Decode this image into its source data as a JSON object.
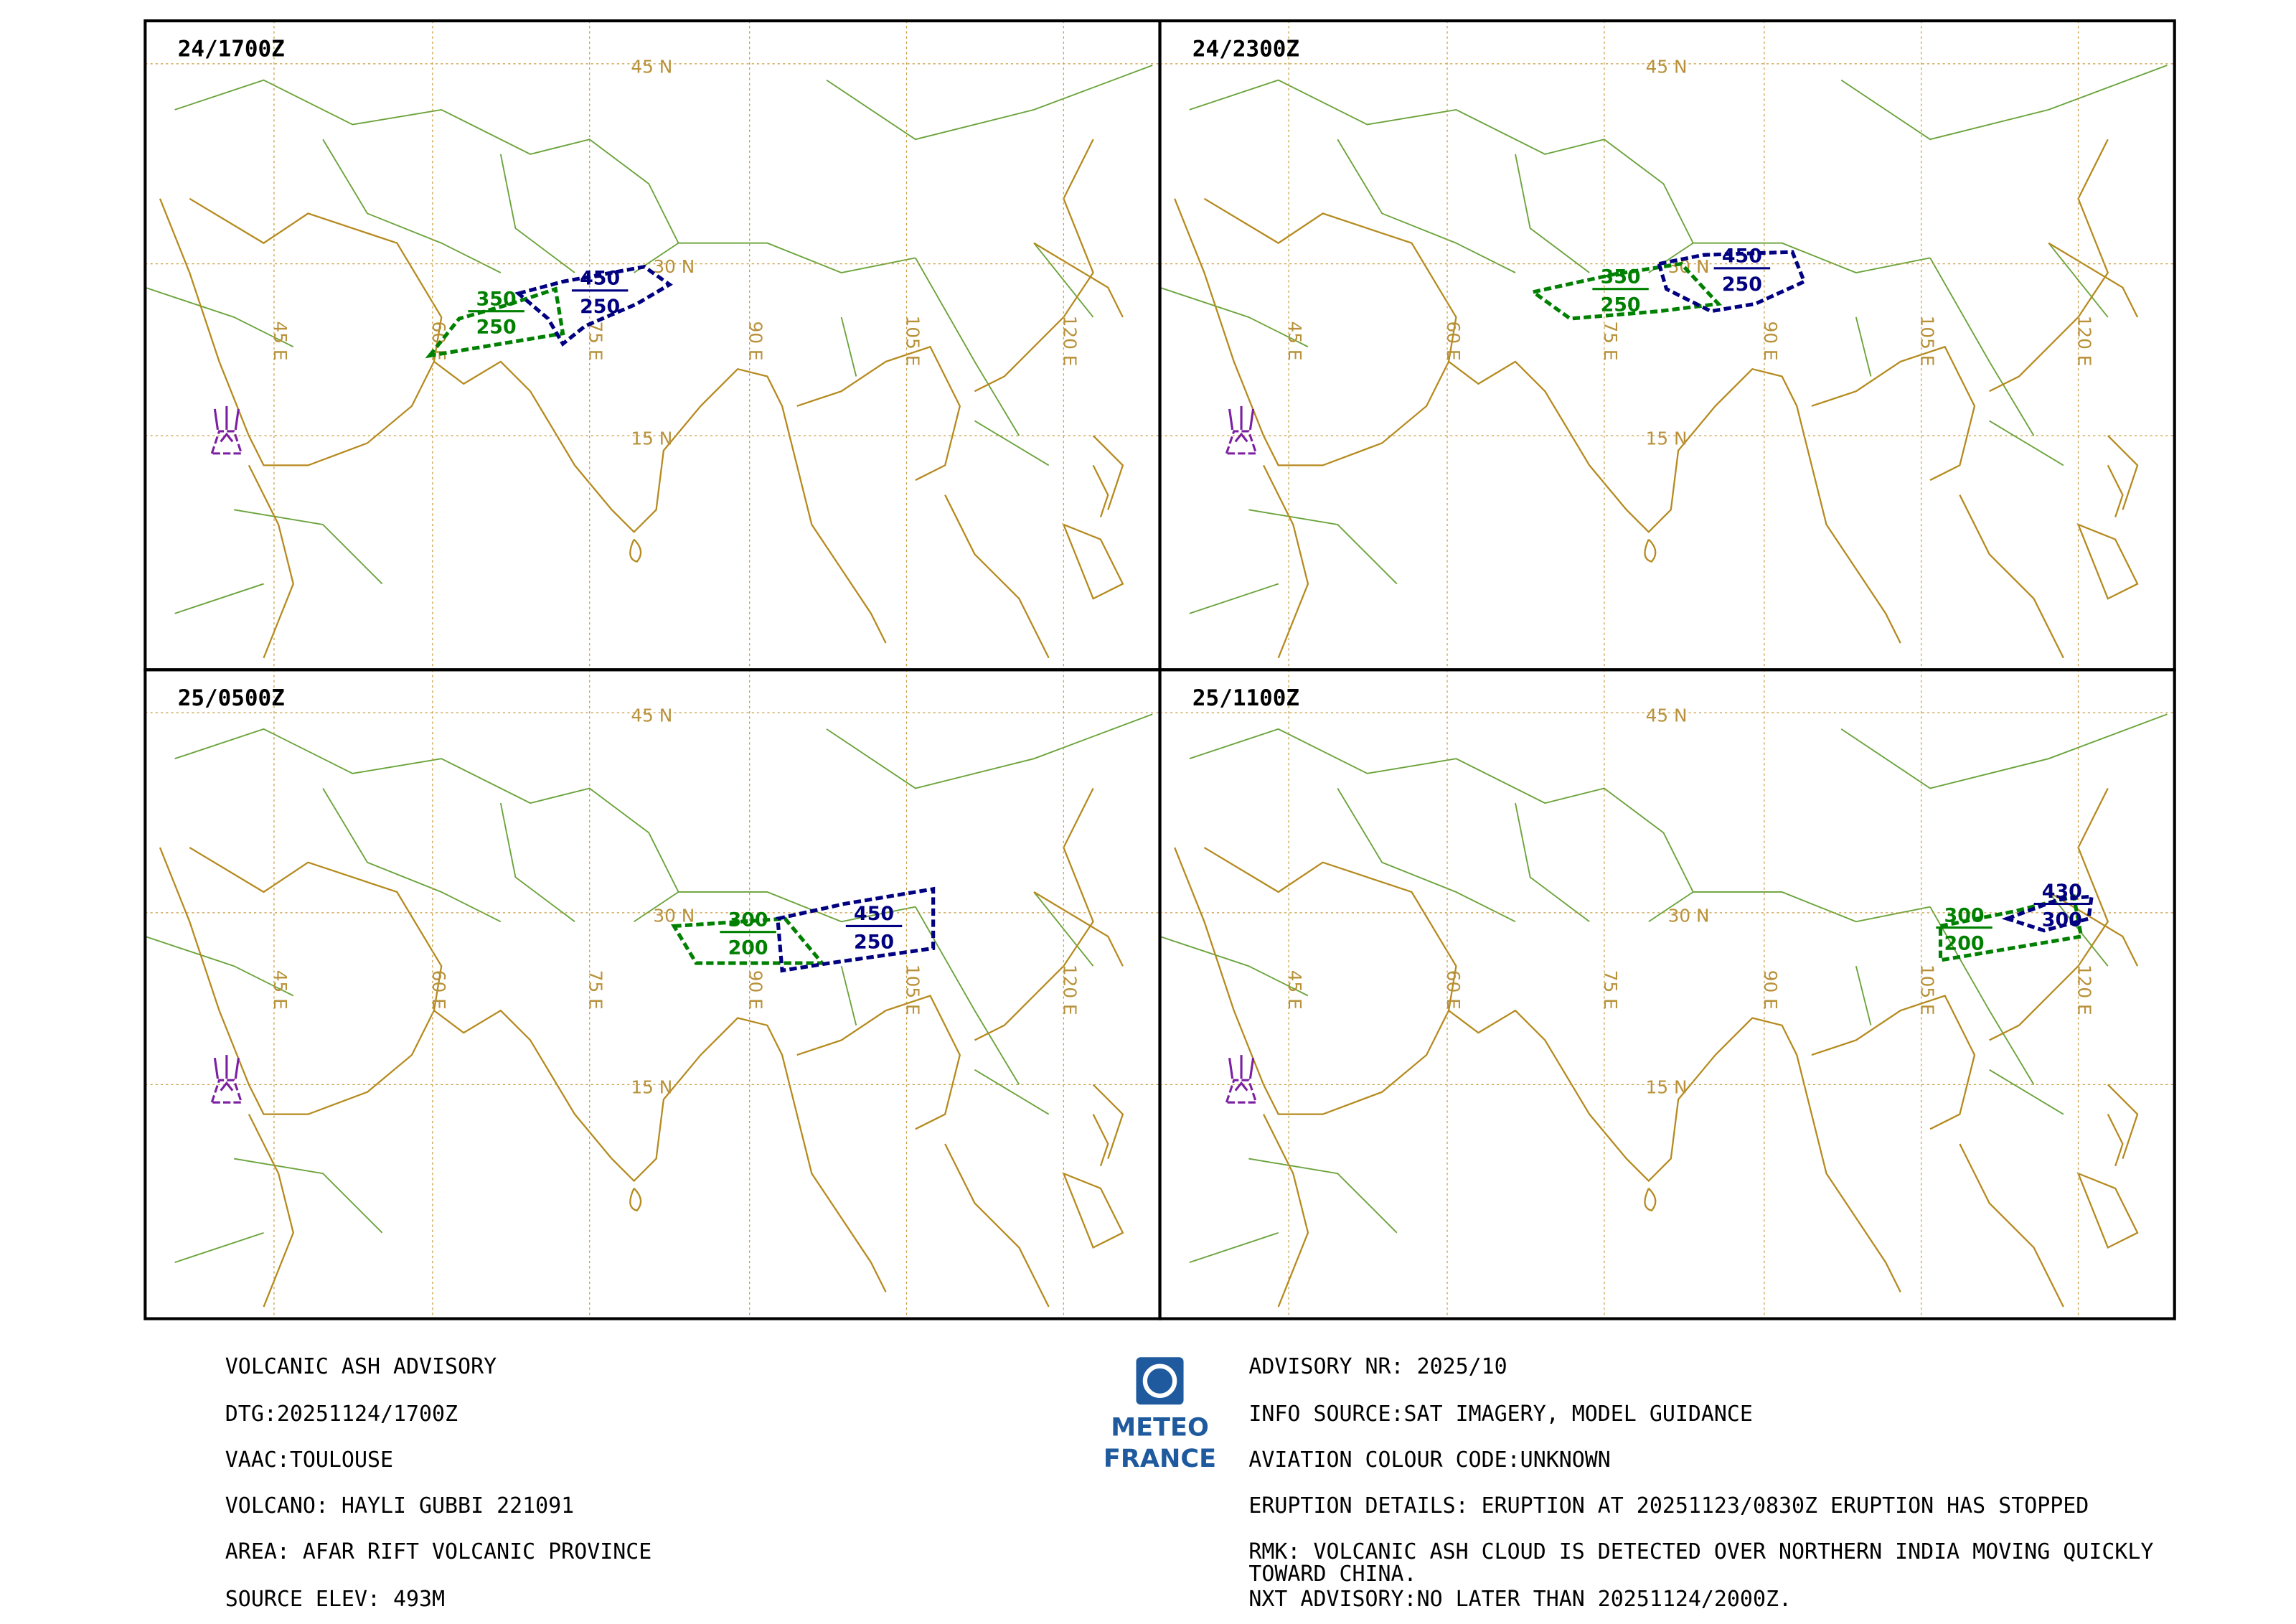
{
  "panels": [
    {
      "time": "24/1700Z",
      "clouds": [
        {
          "top": "350",
          "base": "250",
          "color": "#008000"
        },
        {
          "top": "450",
          "base": "250",
          "color": "#000080"
        }
      ]
    },
    {
      "time": "24/2300Z",
      "clouds": [
        {
          "top": "350",
          "base": "250",
          "color": "#008000"
        },
        {
          "top": "450",
          "base": "250",
          "color": "#000080"
        }
      ]
    },
    {
      "time": "25/0500Z",
      "clouds": [
        {
          "top": "300",
          "base": "200",
          "color": "#008000"
        },
        {
          "top": "450",
          "base": "250",
          "color": "#000080"
        }
      ]
    },
    {
      "time": "25/1100Z",
      "clouds": [
        {
          "top": "300",
          "base": "200",
          "color": "#008000"
        },
        {
          "top": "430",
          "base": "300",
          "color": "#000080"
        }
      ]
    }
  ],
  "grid_labels": {
    "lat": [
      "45 N",
      "30 N",
      "15 N"
    ],
    "lon": [
      "45 E",
      "60 E",
      "75 E",
      "90 E",
      "105 E",
      "120 E"
    ]
  },
  "logo": [
    "METEO",
    "FRANCE"
  ],
  "advisory_left": [
    "VOLCANIC ASH ADVISORY",
    "DTG:20251124/1700Z",
    "VAAC:TOULOUSE",
    "VOLCANO: HAYLI GUBBI 221091",
    "AREA: AFAR RIFT VOLCANIC PROVINCE",
    "SOURCE ELEV: 493M"
  ],
  "advisory_right": [
    "ADVISORY NR: 2025/10",
    "INFO SOURCE:SAT IMAGERY, MODEL GUIDANCE",
    "AVIATION COLOUR CODE:UNKNOWN",
    "ERUPTION DETAILS: ERUPTION AT 20251123/0830Z ERUPTION HAS STOPPED"
  ],
  "rmk": [
    "RMK: VOLCANIC ASH CLOUD IS DETECTED OVER NORTHERN  INDIA MOVING QUICKLY",
    "TOWARD CHINA."
  ],
  "next_advisory": "NXT ADVISORY:NO LATER THAN 20251124/2000Z."
}
